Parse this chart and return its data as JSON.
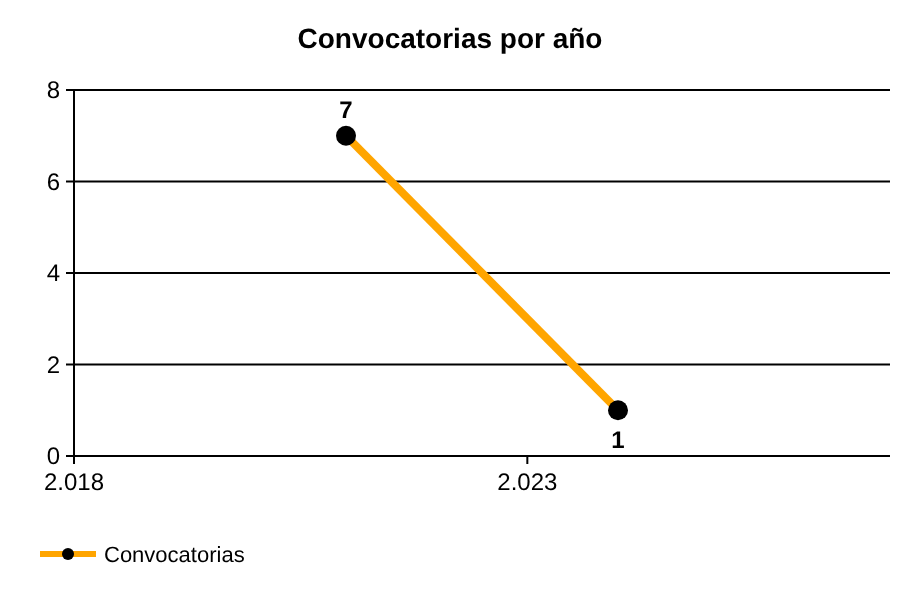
{
  "chart_data": {
    "type": "line",
    "title": "Convocatorias por año",
    "x": [
      2021,
      2024
    ],
    "series": [
      {
        "name": "Convocatorias",
        "color": "#ffa500",
        "values": [
          7,
          1
        ]
      }
    ],
    "xlim": [
      2018,
      2027
    ],
    "xticks": [
      {
        "value": 2018,
        "label": "2.018"
      },
      {
        "value": 2023,
        "label": "2.023"
      }
    ],
    "ylim": [
      0,
      8
    ],
    "yticks": [
      0,
      2,
      4,
      6,
      8
    ],
    "grid": "y",
    "legend": "bottom left",
    "marker": "circle",
    "data_labels": true
  }
}
